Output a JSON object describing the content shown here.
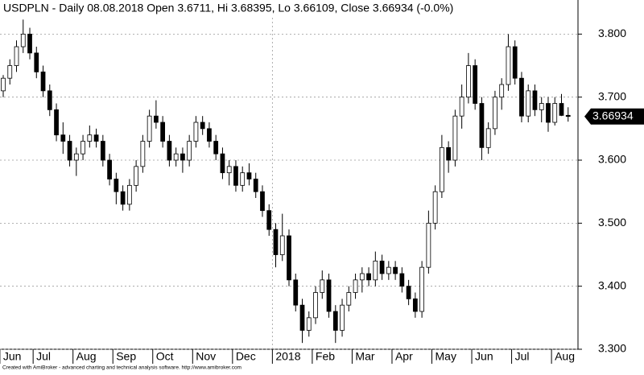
{
  "title": "USDPLN - Daily 08.08.2018 Open 3.6711, Hi 3.68395, Lo 3.66109, Close 3.66934 (-0.0%)",
  "footer": "Created with AmiBroker - advanced charting and technical analysis software. http://www.amibroker.com",
  "chart_data": {
    "type": "candlestick",
    "months": [
      {
        "label": "Jun",
        "candles": [
          [
            3.71,
            3.735,
            3.7,
            3.73
          ],
          [
            3.73,
            3.76,
            3.72,
            3.75
          ],
          [
            3.75,
            3.79,
            3.74,
            3.78
          ],
          [
            3.78,
            3.823,
            3.77,
            3.8
          ],
          [
            3.8,
            3.81,
            3.76,
            3.77
          ]
        ]
      },
      {
        "label": "Jul",
        "candles": [
          [
            3.77,
            3.78,
            3.73,
            3.74
          ],
          [
            3.74,
            3.75,
            3.7,
            3.71
          ],
          [
            3.71,
            3.72,
            3.67,
            3.68
          ],
          [
            3.68,
            3.69,
            3.63,
            3.64
          ],
          [
            3.64,
            3.66,
            3.61,
            3.63
          ],
          [
            3.63,
            3.64,
            3.59,
            3.6
          ]
        ]
      },
      {
        "label": "Aug",
        "candles": [
          [
            3.6,
            3.62,
            3.575,
            3.61
          ],
          [
            3.61,
            3.64,
            3.6,
            3.63
          ],
          [
            3.63,
            3.655,
            3.62,
            3.64
          ],
          [
            3.64,
            3.65,
            3.62,
            3.63
          ],
          [
            3.63,
            3.64,
            3.59,
            3.6
          ],
          [
            3.6,
            3.61,
            3.56,
            3.57
          ]
        ]
      },
      {
        "label": "Sep",
        "candles": [
          [
            3.57,
            3.58,
            3.53,
            3.55
          ],
          [
            3.55,
            3.56,
            3.52,
            3.53
          ],
          [
            3.53,
            3.57,
            3.52,
            3.56
          ],
          [
            3.56,
            3.6,
            3.55,
            3.59
          ],
          [
            3.59,
            3.64,
            3.58,
            3.63
          ],
          [
            3.63,
            3.68,
            3.62,
            3.67
          ]
        ]
      },
      {
        "label": "Oct",
        "candles": [
          [
            3.67,
            3.695,
            3.65,
            3.66
          ],
          [
            3.66,
            3.67,
            3.62,
            3.63
          ],
          [
            3.63,
            3.64,
            3.59,
            3.6
          ],
          [
            3.6,
            3.62,
            3.59,
            3.61
          ],
          [
            3.61,
            3.62,
            3.58,
            3.6
          ],
          [
            3.6,
            3.64,
            3.59,
            3.63
          ]
        ]
      },
      {
        "label": "Nov",
        "candles": [
          [
            3.63,
            3.67,
            3.62,
            3.66
          ],
          [
            3.66,
            3.67,
            3.64,
            3.65
          ],
          [
            3.65,
            3.66,
            3.62,
            3.63
          ],
          [
            3.63,
            3.64,
            3.6,
            3.61
          ],
          [
            3.61,
            3.62,
            3.57,
            3.58
          ],
          [
            3.58,
            3.6,
            3.56,
            3.59
          ]
        ]
      },
      {
        "label": "Dec",
        "candles": [
          [
            3.59,
            3.6,
            3.55,
            3.56
          ],
          [
            3.56,
            3.59,
            3.55,
            3.58
          ],
          [
            3.58,
            3.595,
            3.56,
            3.57
          ],
          [
            3.57,
            3.58,
            3.54,
            3.55
          ],
          [
            3.55,
            3.56,
            3.51,
            3.52
          ],
          [
            3.52,
            3.53,
            3.48,
            3.49
          ]
        ]
      },
      {
        "label": "2018",
        "candles": [
          [
            3.49,
            3.5,
            3.43,
            3.45
          ],
          [
            3.45,
            3.515,
            3.44,
            3.48
          ],
          [
            3.48,
            3.49,
            3.4,
            3.41
          ],
          [
            3.41,
            3.42,
            3.36,
            3.37
          ],
          [
            3.37,
            3.38,
            3.31,
            3.33
          ],
          [
            3.33,
            3.36,
            3.32,
            3.35
          ]
        ]
      },
      {
        "label": "Feb",
        "candles": [
          [
            3.35,
            3.4,
            3.34,
            3.39
          ],
          [
            3.39,
            3.425,
            3.38,
            3.41
          ],
          [
            3.41,
            3.42,
            3.35,
            3.36
          ],
          [
            3.36,
            3.37,
            3.31,
            3.33
          ],
          [
            3.33,
            3.38,
            3.32,
            3.37
          ],
          [
            3.37,
            3.4,
            3.36,
            3.39
          ]
        ]
      },
      {
        "label": "Mar",
        "candles": [
          [
            3.39,
            3.42,
            3.38,
            3.41
          ],
          [
            3.41,
            3.43,
            3.39,
            3.42
          ],
          [
            3.42,
            3.43,
            3.4,
            3.41
          ],
          [
            3.41,
            3.455,
            3.4,
            3.44
          ],
          [
            3.44,
            3.45,
            3.41,
            3.42
          ],
          [
            3.42,
            3.44,
            3.41,
            3.43
          ]
        ]
      },
      {
        "label": "Apr",
        "candles": [
          [
            3.43,
            3.44,
            3.41,
            3.42
          ],
          [
            3.42,
            3.43,
            3.39,
            3.4
          ],
          [
            3.4,
            3.41,
            3.37,
            3.38
          ],
          [
            3.38,
            3.39,
            3.35,
            3.36
          ],
          [
            3.36,
            3.44,
            3.35,
            3.43
          ],
          [
            3.43,
            3.52,
            3.42,
            3.5
          ]
        ]
      },
      {
        "label": "May",
        "candles": [
          [
            3.5,
            3.56,
            3.49,
            3.55
          ],
          [
            3.55,
            3.64,
            3.54,
            3.62
          ],
          [
            3.62,
            3.63,
            3.58,
            3.6
          ],
          [
            3.6,
            3.68,
            3.59,
            3.67
          ],
          [
            3.67,
            3.72,
            3.65,
            3.7
          ],
          [
            3.7,
            3.77,
            3.69,
            3.75
          ]
        ]
      },
      {
        "label": "Jun",
        "candles": [
          [
            3.75,
            3.76,
            3.68,
            3.69
          ],
          [
            3.69,
            3.7,
            3.6,
            3.62
          ],
          [
            3.62,
            3.66,
            3.61,
            3.65
          ],
          [
            3.65,
            3.71,
            3.64,
            3.7
          ],
          [
            3.7,
            3.73,
            3.68,
            3.72
          ],
          [
            3.72,
            3.8,
            3.71,
            3.78
          ]
        ]
      },
      {
        "label": "Jul",
        "candles": [
          [
            3.78,
            3.79,
            3.72,
            3.73
          ],
          [
            3.73,
            3.74,
            3.66,
            3.67
          ],
          [
            3.67,
            3.72,
            3.66,
            3.71
          ],
          [
            3.71,
            3.72,
            3.67,
            3.68
          ],
          [
            3.68,
            3.7,
            3.66,
            3.69
          ],
          [
            3.69,
            3.7,
            3.645,
            3.66
          ]
        ]
      },
      {
        "label": "Aug",
        "candles": [
          [
            3.66,
            3.7,
            3.655,
            3.69
          ],
          [
            3.69,
            3.705,
            3.67,
            3.671
          ],
          [
            3.6711,
            3.68395,
            3.66109,
            3.66934
          ]
        ]
      }
    ],
    "ylim": [
      3.3,
      3.826
    ],
    "yticks": [
      {
        "value": 3.3,
        "label": "3.300"
      },
      {
        "value": 3.4,
        "label": "3.400"
      },
      {
        "value": 3.5,
        "label": "3.500"
      },
      {
        "value": 3.6,
        "label": "3.600"
      },
      {
        "value": 3.7,
        "label": "3.700"
      },
      {
        "value": 3.8,
        "label": "3.800"
      }
    ],
    "last_price": 3.66934,
    "grid": true,
    "up_color": "#ffffff",
    "down_color": "#000000"
  }
}
